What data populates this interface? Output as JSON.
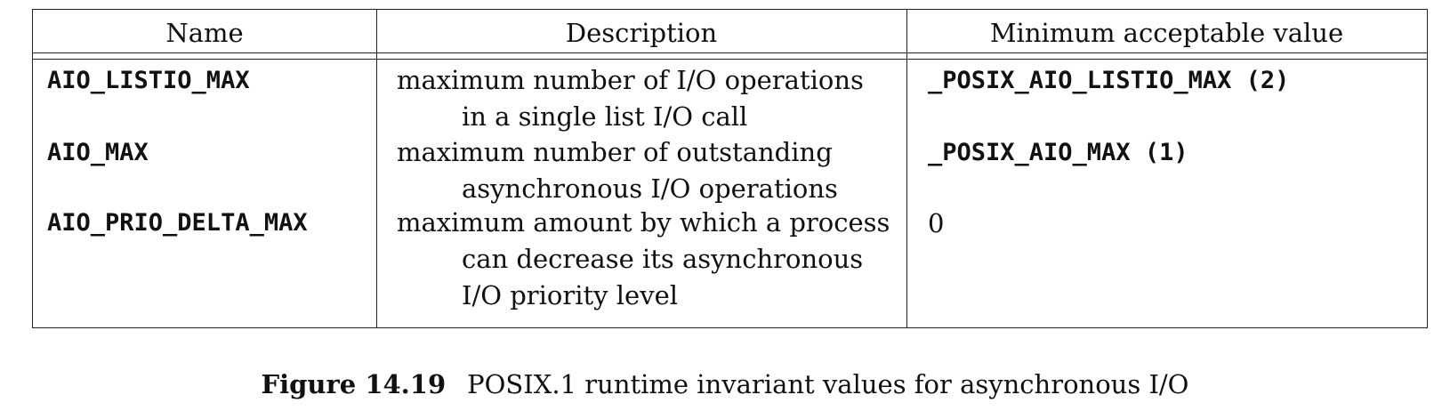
{
  "table": {
    "headers": {
      "name": "Name",
      "description": "Description",
      "min_value": "Minimum acceptable value"
    },
    "rows": [
      {
        "name": "AIO_LISTIO_MAX",
        "description_lines": [
          "maximum number of I/O operations",
          "in a single list I/O call"
        ],
        "min_value": "_POSIX_AIO_LISTIO_MAX (2)",
        "min_value_style": "mono"
      },
      {
        "name": "AIO_MAX",
        "description_lines": [
          "maximum number of outstanding",
          "asynchronous I/O operations"
        ],
        "min_value": "_POSIX_AIO_MAX (1)",
        "min_value_style": "mono"
      },
      {
        "name": "AIO_PRIO_DELTA_MAX",
        "description_lines": [
          "maximum amount by which a process",
          "can decrease its asynchronous",
          "I/O priority level"
        ],
        "min_value": "0",
        "min_value_style": "serif"
      }
    ]
  },
  "caption": {
    "number": "Figure 14.19",
    "text": "POSIX.1 runtime invariant values for asynchronous I/O"
  }
}
